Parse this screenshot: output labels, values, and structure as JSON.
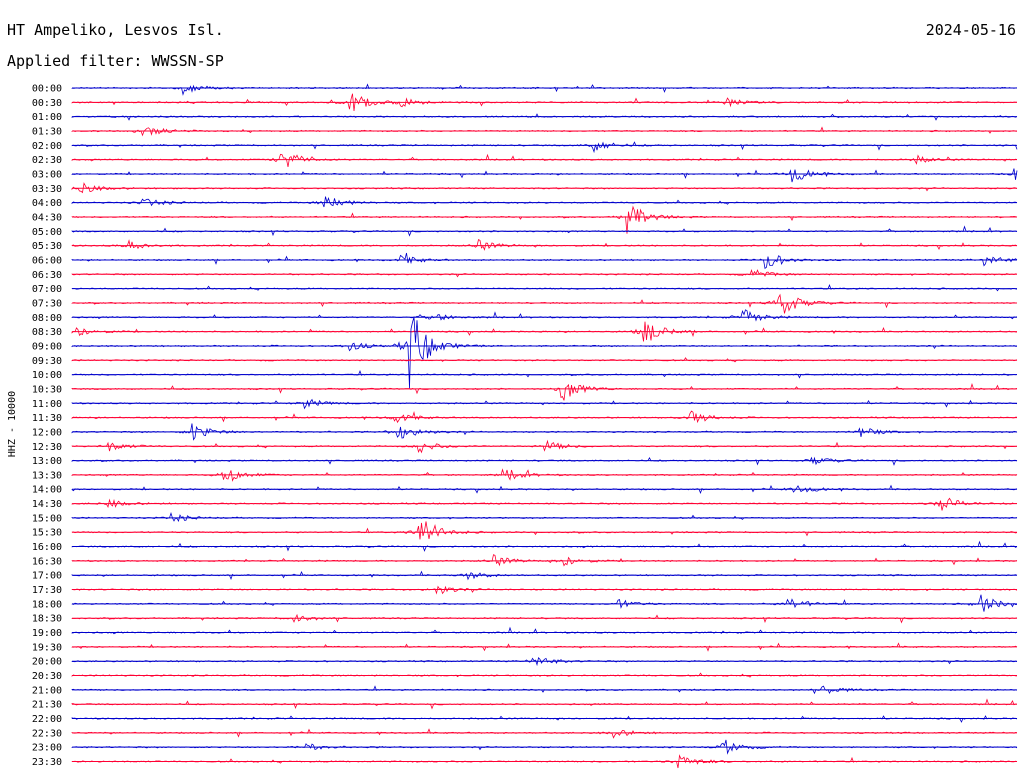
{
  "header": {
    "station": "HT Ampeliko, Lesvos Isl.",
    "date": "2024-05-16",
    "filter": "Applied filter: WWSSN-SP"
  },
  "colors": {
    "even_rows": "#0000cc",
    "odd_rows": "#ff0033"
  },
  "chart_data": {
    "type": "line",
    "title": "HT Ampeliko, Lesvos Isl.",
    "ylabel": "HHZ - 10000",
    "row_labels": [
      "00:00",
      "00:30",
      "01:00",
      "01:30",
      "02:00",
      "02:30",
      "03:00",
      "03:30",
      "04:00",
      "04:30",
      "05:00",
      "05:30",
      "06:00",
      "06:30",
      "07:00",
      "07:30",
      "08:00",
      "08:30",
      "09:00",
      "09:30",
      "10:00",
      "10:30",
      "11:00",
      "11:30",
      "12:00",
      "12:30",
      "13:00",
      "13:30",
      "14:00",
      "14:30",
      "15:00",
      "15:30",
      "16:00",
      "16:30",
      "17:00",
      "17:30",
      "18:00",
      "18:30",
      "19:00",
      "19:30",
      "20:00",
      "20:30",
      "21:00",
      "21:30",
      "22:00",
      "22:30",
      "23:00",
      "23:30"
    ],
    "row_minutes": 30,
    "events": [
      {
        "row": 0,
        "minute": 3.5,
        "amp": 6
      },
      {
        "row": 1,
        "minute": 8.8,
        "amp": 14
      },
      {
        "row": 1,
        "minute": 10.4,
        "amp": 6
      },
      {
        "row": 1,
        "minute": 20.7,
        "amp": 5
      },
      {
        "row": 3,
        "minute": 2.2,
        "amp": 8
      },
      {
        "row": 4,
        "minute": 16.5,
        "amp": 8
      },
      {
        "row": 4,
        "minute": 29.9,
        "amp": 6
      },
      {
        "row": 5,
        "minute": 6.6,
        "amp": 14
      },
      {
        "row": 5,
        "minute": 26.7,
        "amp": 5
      },
      {
        "row": 6,
        "minute": 22.8,
        "amp": 10
      },
      {
        "row": 6,
        "minute": 29.9,
        "amp": 6
      },
      {
        "row": 7,
        "minute": 0.2,
        "amp": 7
      },
      {
        "row": 8,
        "minute": 2.2,
        "amp": 6
      },
      {
        "row": 8,
        "minute": 8.0,
        "amp": 9
      },
      {
        "row": 9,
        "minute": 17.6,
        "amp": 17
      },
      {
        "row": 11,
        "minute": 1.7,
        "amp": 6
      },
      {
        "row": 11,
        "minute": 12.8,
        "amp": 7
      },
      {
        "row": 12,
        "minute": 10.4,
        "amp": 6
      },
      {
        "row": 12,
        "minute": 22.0,
        "amp": 10
      },
      {
        "row": 12,
        "minute": 28.9,
        "amp": 7
      },
      {
        "row": 13,
        "minute": 21.5,
        "amp": 6
      },
      {
        "row": 15,
        "minute": 22.4,
        "amp": 18
      },
      {
        "row": 16,
        "minute": 11.3,
        "amp": 6
      },
      {
        "row": 16,
        "minute": 21.2,
        "amp": 11
      },
      {
        "row": 17,
        "minute": 0.1,
        "amp": 6
      },
      {
        "row": 17,
        "minute": 18.1,
        "amp": 16
      },
      {
        "row": 18,
        "minute": 10.7,
        "amp": 44
      },
      {
        "row": 18,
        "minute": 8.7,
        "amp": 6
      },
      {
        "row": 21,
        "minute": 15.5,
        "amp": 16
      },
      {
        "row": 22,
        "minute": 7.3,
        "amp": 6
      },
      {
        "row": 23,
        "minute": 10.2,
        "amp": 7
      },
      {
        "row": 23,
        "minute": 19.6,
        "amp": 8
      },
      {
        "row": 24,
        "minute": 3.8,
        "amp": 10
      },
      {
        "row": 24,
        "minute": 10.3,
        "amp": 12
      },
      {
        "row": 24,
        "minute": 25.0,
        "amp": 6
      },
      {
        "row": 25,
        "minute": 1.1,
        "amp": 6
      },
      {
        "row": 25,
        "minute": 11.0,
        "amp": 7
      },
      {
        "row": 25,
        "minute": 15.0,
        "amp": 6
      },
      {
        "row": 26,
        "minute": 23.4,
        "amp": 5
      },
      {
        "row": 27,
        "minute": 4.8,
        "amp": 10
      },
      {
        "row": 27,
        "minute": 13.8,
        "amp": 6
      },
      {
        "row": 28,
        "minute": 22.9,
        "amp": 6
      },
      {
        "row": 29,
        "minute": 1.1,
        "amp": 5
      },
      {
        "row": 29,
        "minute": 27.5,
        "amp": 10
      },
      {
        "row": 30,
        "minute": 3.1,
        "amp": 5
      },
      {
        "row": 31,
        "minute": 11.0,
        "amp": 20
      },
      {
        "row": 33,
        "minute": 13.3,
        "amp": 7
      },
      {
        "row": 33,
        "minute": 15.6,
        "amp": 6
      },
      {
        "row": 34,
        "minute": 12.5,
        "amp": 5
      },
      {
        "row": 35,
        "minute": 11.5,
        "amp": 6
      },
      {
        "row": 36,
        "minute": 17.3,
        "amp": 5
      },
      {
        "row": 36,
        "minute": 22.7,
        "amp": 7
      },
      {
        "row": 36,
        "minute": 28.8,
        "amp": 11
      },
      {
        "row": 37,
        "minute": 7.0,
        "amp": 5
      },
      {
        "row": 40,
        "minute": 14.6,
        "amp": 7
      },
      {
        "row": 42,
        "minute": 23.8,
        "amp": 5
      },
      {
        "row": 45,
        "minute": 17.1,
        "amp": 6
      },
      {
        "row": 46,
        "minute": 7.3,
        "amp": 5
      },
      {
        "row": 46,
        "minute": 20.6,
        "amp": 10
      },
      {
        "row": 47,
        "minute": 19.2,
        "amp": 9
      }
    ]
  }
}
